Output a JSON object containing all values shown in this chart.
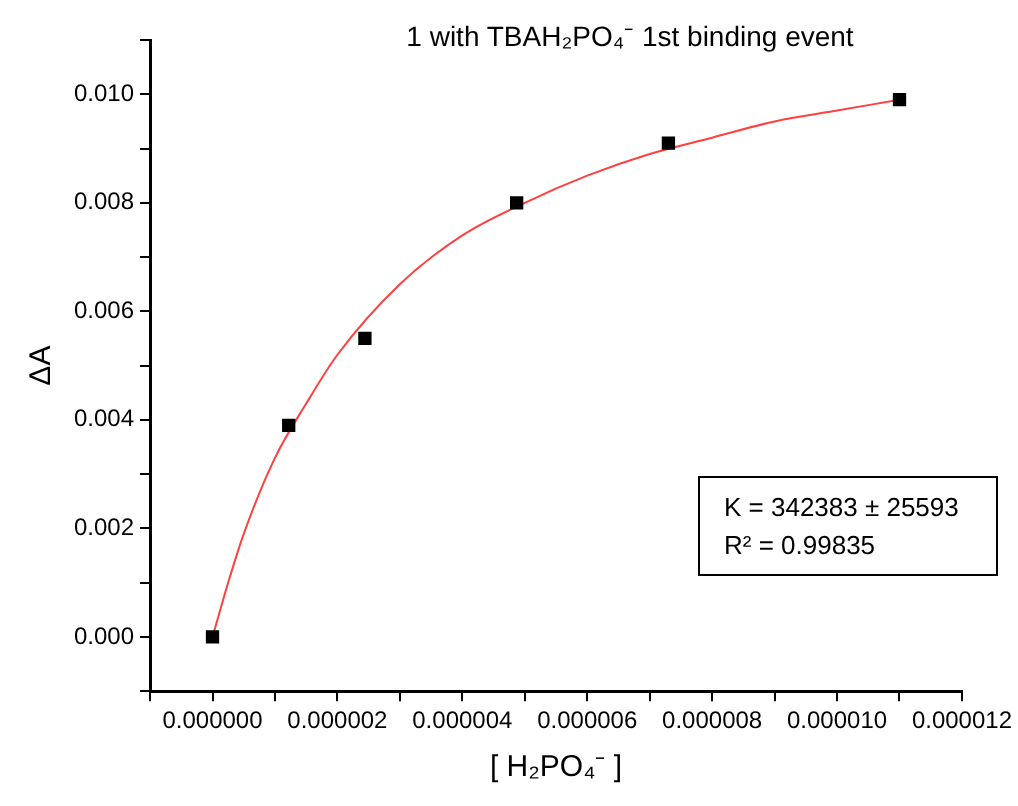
{
  "chart_data": {
    "type": "scatter",
    "title": "1 with TBAH₂PO₄⁻ 1st binding event",
    "xlabel": "[ H₂PO₄⁻ ]",
    "ylabel": "ΔA",
    "series": [
      {
        "marker": "square",
        "color": "#000000",
        "x": [
          0,
          1.22e-06,
          2.44e-06,
          4.87e-06,
          7.3e-06,
          1.1e-05
        ],
        "values": [
          0,
          0.0039,
          0.0055,
          0.008,
          0.0091,
          0.0099
        ]
      },
      {
        "type": "line",
        "marker": "none",
        "color": "#ff4040",
        "x": [
          0,
          2.5e-07,
          5e-07,
          1e-06,
          1.5e-06,
          2e-06,
          3e-06,
          4e-06,
          5e-06,
          6e-06,
          7e-06,
          8e-06,
          9e-06,
          1e-05,
          1.1e-05
        ],
        "values": [
          0,
          0.001,
          0.0019,
          0.0033,
          0.0043,
          0.0052,
          0.0065,
          0.0074,
          0.008,
          0.0085,
          0.0089,
          0.0092,
          0.0095,
          0.0097,
          0.0099
        ]
      }
    ],
    "xlim": [
      -1e-06,
      1.2e-05
    ],
    "xticks": [
      {
        "value": -1e-06,
        "label": null
      },
      {
        "value": 0,
        "label": "0.000000"
      },
      {
        "value": 1e-06,
        "label": null
      },
      {
        "value": 2e-06,
        "label": "0.000002"
      },
      {
        "value": 3e-06,
        "label": null
      },
      {
        "value": 4e-06,
        "label": "0.000004"
      },
      {
        "value": 5e-06,
        "label": null
      },
      {
        "value": 6e-06,
        "label": "0.000006"
      },
      {
        "value": 7e-06,
        "label": null
      },
      {
        "value": 8e-06,
        "label": "0.000008"
      },
      {
        "value": 9e-06,
        "label": null
      },
      {
        "value": 1e-05,
        "label": "0.000010"
      },
      {
        "value": 1.1e-05,
        "label": null
      },
      {
        "value": 1.2e-05,
        "label": "0.000012"
      }
    ],
    "ylim": [
      -0.001,
      0.011
    ],
    "yticks": [
      {
        "value": -0.001,
        "label": null
      },
      {
        "value": 0,
        "label": "0.000"
      },
      {
        "value": 0.001,
        "label": null
      },
      {
        "value": 0.002,
        "label": "0.002"
      },
      {
        "value": 0.003,
        "label": null
      },
      {
        "value": 0.004,
        "label": "0.004"
      },
      {
        "value": 0.005,
        "label": null
      },
      {
        "value": 0.006,
        "label": "0.006"
      },
      {
        "value": 0.007,
        "label": null
      },
      {
        "value": 0.008,
        "label": "0.008"
      },
      {
        "value": 0.009,
        "label": null
      },
      {
        "value": 0.01,
        "label": "0.010"
      },
      {
        "value": 0.011,
        "label": null
      }
    ],
    "annotations": [
      "K = 342383 ± 25593",
      "R² = 0.99835"
    ],
    "grid": false,
    "legend": false
  }
}
